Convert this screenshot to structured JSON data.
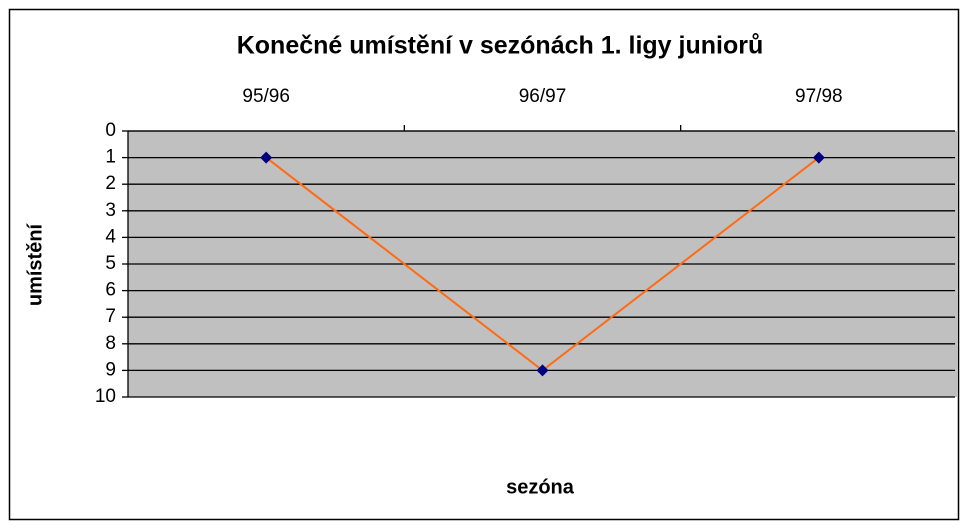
{
  "chart_data": {
    "type": "line",
    "title": "Konečné umístění v sezónách 1. ligy juniorů",
    "x_label": "sezóna",
    "y_label": "umístění",
    "categories": [
      "95/96",
      "96/97",
      "97/98"
    ],
    "values": [
      1,
      9,
      1
    ],
    "line_color": "#ff6a13",
    "marker_color": "#000080",
    "plot_background": "#c0c0c0",
    "ylim": [
      0,
      10
    ],
    "yticks": [
      0,
      1,
      2,
      3,
      4,
      5,
      6,
      7,
      8,
      9,
      10
    ],
    "y_reversed": true,
    "grid": true
  }
}
